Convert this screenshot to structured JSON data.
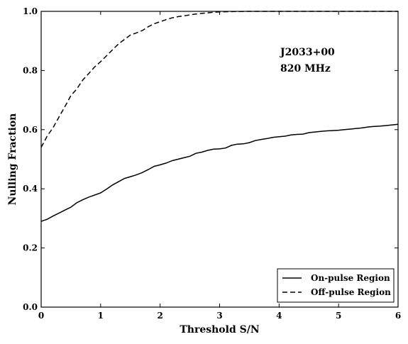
{
  "chart_data": {
    "type": "line",
    "title": "",
    "xlabel": "Threshold S/N",
    "ylabel": "Nulling Fraction",
    "xlim": [
      0,
      6
    ],
    "ylim": [
      0.0,
      1.0
    ],
    "xticks": [
      "0",
      "1",
      "2",
      "3",
      "4",
      "5",
      "6"
    ],
    "yticks": [
      "0.0",
      "0.2",
      "0.4",
      "0.6",
      "0.8",
      "1.0"
    ],
    "grid": false,
    "legend_position": "bottom-right",
    "annotation": [
      "J2033+00",
      "820 MHz"
    ],
    "series": [
      {
        "name": "On-pulse Region",
        "style": "solid",
        "x": [
          0,
          0.1,
          0.2,
          0.3,
          0.4,
          0.5,
          0.6,
          0.7,
          0.8,
          0.9,
          1.0,
          1.1,
          1.2,
          1.3,
          1.4,
          1.5,
          1.6,
          1.7,
          1.8,
          1.9,
          2.0,
          2.1,
          2.2,
          2.3,
          2.4,
          2.5,
          2.6,
          2.7,
          2.8,
          2.9,
          3.0,
          3.1,
          3.2,
          3.3,
          3.4,
          3.5,
          3.6,
          3.7,
          3.8,
          3.9,
          4.0,
          4.1,
          4.2,
          4.3,
          4.4,
          4.5,
          4.6,
          4.7,
          4.8,
          4.9,
          5.0,
          5.1,
          5.2,
          5.3,
          5.4,
          5.5,
          5.6,
          5.7,
          5.8,
          5.9,
          6.0
        ],
        "y": [
          0.29,
          0.297,
          0.308,
          0.318,
          0.328,
          0.338,
          0.353,
          0.363,
          0.372,
          0.379,
          0.386,
          0.399,
          0.413,
          0.424,
          0.435,
          0.441,
          0.447,
          0.455,
          0.465,
          0.476,
          0.481,
          0.487,
          0.495,
          0.5,
          0.505,
          0.51,
          0.52,
          0.524,
          0.53,
          0.534,
          0.535,
          0.538,
          0.547,
          0.551,
          0.552,
          0.556,
          0.563,
          0.567,
          0.57,
          0.574,
          0.576,
          0.578,
          0.582,
          0.584,
          0.585,
          0.59,
          0.592,
          0.594,
          0.596,
          0.597,
          0.598,
          0.6,
          0.602,
          0.604,
          0.606,
          0.609,
          0.611,
          0.612,
          0.614,
          0.616,
          0.618
        ]
      },
      {
        "name": "Off-pulse Region",
        "style": "dashed",
        "x": [
          0,
          0.1,
          0.2,
          0.3,
          0.4,
          0.5,
          0.6,
          0.7,
          0.8,
          0.9,
          1.0,
          1.1,
          1.2,
          1.3,
          1.4,
          1.5,
          1.6,
          1.7,
          1.8,
          1.9,
          2.0,
          2.1,
          2.2,
          2.3,
          2.4,
          2.5,
          2.6,
          2.7,
          2.8,
          2.9,
          3.0,
          3.2,
          3.5,
          4.0,
          4.5,
          5.0,
          5.5,
          6.0
        ],
        "y": [
          0.54,
          0.578,
          0.607,
          0.643,
          0.678,
          0.715,
          0.738,
          0.768,
          0.79,
          0.812,
          0.83,
          0.85,
          0.87,
          0.89,
          0.905,
          0.92,
          0.927,
          0.935,
          0.948,
          0.958,
          0.965,
          0.972,
          0.978,
          0.982,
          0.985,
          0.988,
          0.991,
          0.993,
          0.995,
          0.997,
          0.998,
          0.999,
          1.0,
          1.0,
          1.0,
          1.0,
          1.0,
          1.0
        ]
      }
    ]
  }
}
